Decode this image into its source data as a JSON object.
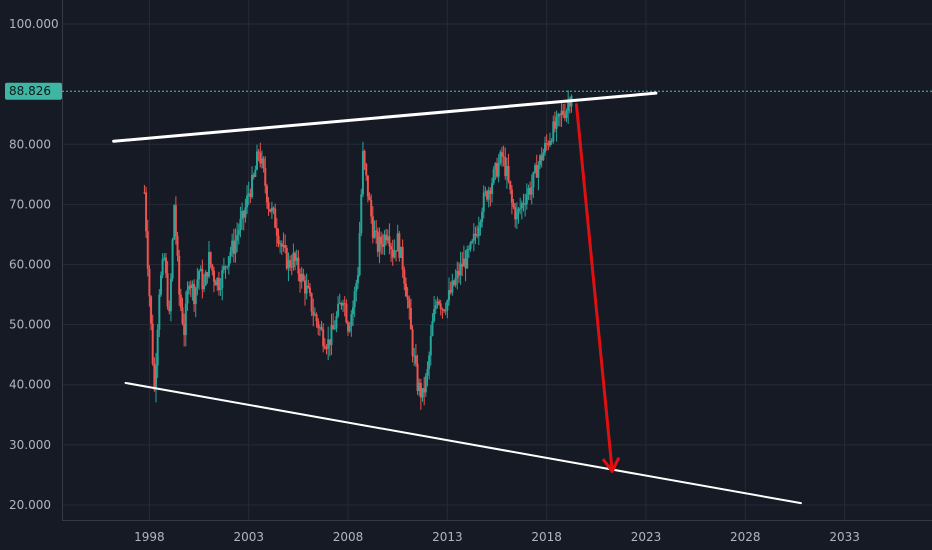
{
  "colors": {
    "background": "#161a25",
    "grid": "#262a36",
    "axis_text": "#b2b5be",
    "candle_up": "#26a69a",
    "candle_down": "#ef5350",
    "price_line": "#4fc3b5",
    "price_tag_bg": "#3fb6a4",
    "trendline": "#ffffff",
    "arrow": "#e01010"
  },
  "price_tag": {
    "value": "88.826"
  },
  "chart_data": {
    "type": "candlestick",
    "title": "",
    "xlabel": "",
    "ylabel": "",
    "x_ticks": [
      "1998",
      "2003",
      "2008",
      "2013",
      "2018",
      "2023",
      "2028",
      "2033"
    ],
    "y_ticks": [
      "100.000",
      "80.000",
      "70.000",
      "60.000",
      "50.000",
      "40.000",
      "30.000",
      "20.000"
    ],
    "ylim": [
      17.5,
      104
    ],
    "xlim": [
      1993.6,
      2037.4
    ],
    "grid": true,
    "last_price": 88.826,
    "series": [
      {
        "values": [
          [
            1997.75,
            72
          ],
          [
            1998.0,
            55
          ],
          [
            1998.25,
            39
          ],
          [
            1998.5,
            56
          ],
          [
            1998.75,
            61
          ],
          [
            1999.0,
            51
          ],
          [
            1999.25,
            70
          ],
          [
            1999.5,
            55
          ],
          [
            1999.75,
            49
          ],
          [
            2000.0,
            58
          ],
          [
            2000.25,
            55
          ],
          [
            2000.5,
            59
          ],
          [
            2000.75,
            56
          ],
          [
            2001.0,
            61
          ],
          [
            2001.25,
            58
          ],
          [
            2001.5,
            57
          ],
          [
            2001.75,
            59
          ],
          [
            2002.0,
            62
          ],
          [
            2002.25,
            63
          ],
          [
            2002.5,
            66
          ],
          [
            2002.75,
            68
          ],
          [
            2003.0,
            72
          ],
          [
            2003.25,
            74
          ],
          [
            2003.5,
            79
          ],
          [
            2003.75,
            75
          ],
          [
            2004.0,
            70
          ],
          [
            2004.25,
            68
          ],
          [
            2004.5,
            65
          ],
          [
            2004.75,
            62
          ],
          [
            2005.0,
            60
          ],
          [
            2005.25,
            61
          ],
          [
            2005.5,
            59
          ],
          [
            2005.75,
            57
          ],
          [
            2006.0,
            55
          ],
          [
            2006.25,
            52
          ],
          [
            2006.5,
            50
          ],
          [
            2006.75,
            48
          ],
          [
            2007.0,
            47
          ],
          [
            2007.25,
            49
          ],
          [
            2007.5,
            52
          ],
          [
            2007.75,
            55
          ],
          [
            2008.0,
            50
          ],
          [
            2008.25,
            53
          ],
          [
            2008.5,
            59
          ],
          [
            2008.75,
            78
          ],
          [
            2009.0,
            72
          ],
          [
            2009.25,
            66
          ],
          [
            2009.5,
            63
          ],
          [
            2009.75,
            64
          ],
          [
            2010.0,
            66
          ],
          [
            2010.25,
            62
          ],
          [
            2010.5,
            64
          ],
          [
            2010.75,
            60
          ],
          [
            2011.0,
            54
          ],
          [
            2011.25,
            46
          ],
          [
            2011.5,
            40
          ],
          [
            2011.75,
            38
          ],
          [
            2012.0,
            42
          ],
          [
            2012.25,
            50
          ],
          [
            2012.5,
            55
          ],
          [
            2012.75,
            53
          ],
          [
            2013.0,
            54
          ],
          [
            2013.25,
            56
          ],
          [
            2013.5,
            58
          ],
          [
            2013.75,
            60
          ],
          [
            2014.0,
            61
          ],
          [
            2014.25,
            63
          ],
          [
            2014.5,
            66
          ],
          [
            2014.75,
            70
          ],
          [
            2015.0,
            72
          ],
          [
            2015.25,
            74
          ],
          [
            2015.5,
            76
          ],
          [
            2015.75,
            78
          ],
          [
            2016.0,
            75
          ],
          [
            2016.25,
            70
          ],
          [
            2016.5,
            68
          ],
          [
            2016.75,
            70
          ],
          [
            2017.0,
            72
          ],
          [
            2017.25,
            73
          ],
          [
            2017.5,
            76
          ],
          [
            2017.75,
            78
          ],
          [
            2018.0,
            80
          ],
          [
            2018.25,
            82
          ],
          [
            2018.5,
            83
          ],
          [
            2018.75,
            85
          ],
          [
            2019.0,
            86
          ],
          [
            2019.25,
            88.8
          ]
        ]
      }
    ],
    "trendlines": [
      {
        "from": [
          1996.2,
          80.5
        ],
        "to": [
          2023.5,
          88.5
        ]
      },
      {
        "from": [
          1996.8,
          40.3
        ],
        "to": [
          2030.8,
          20.3
        ]
      }
    ],
    "arrow": {
      "from": [
        2019.5,
        86.6
      ],
      "to": [
        2021.3,
        25.6
      ]
    }
  }
}
